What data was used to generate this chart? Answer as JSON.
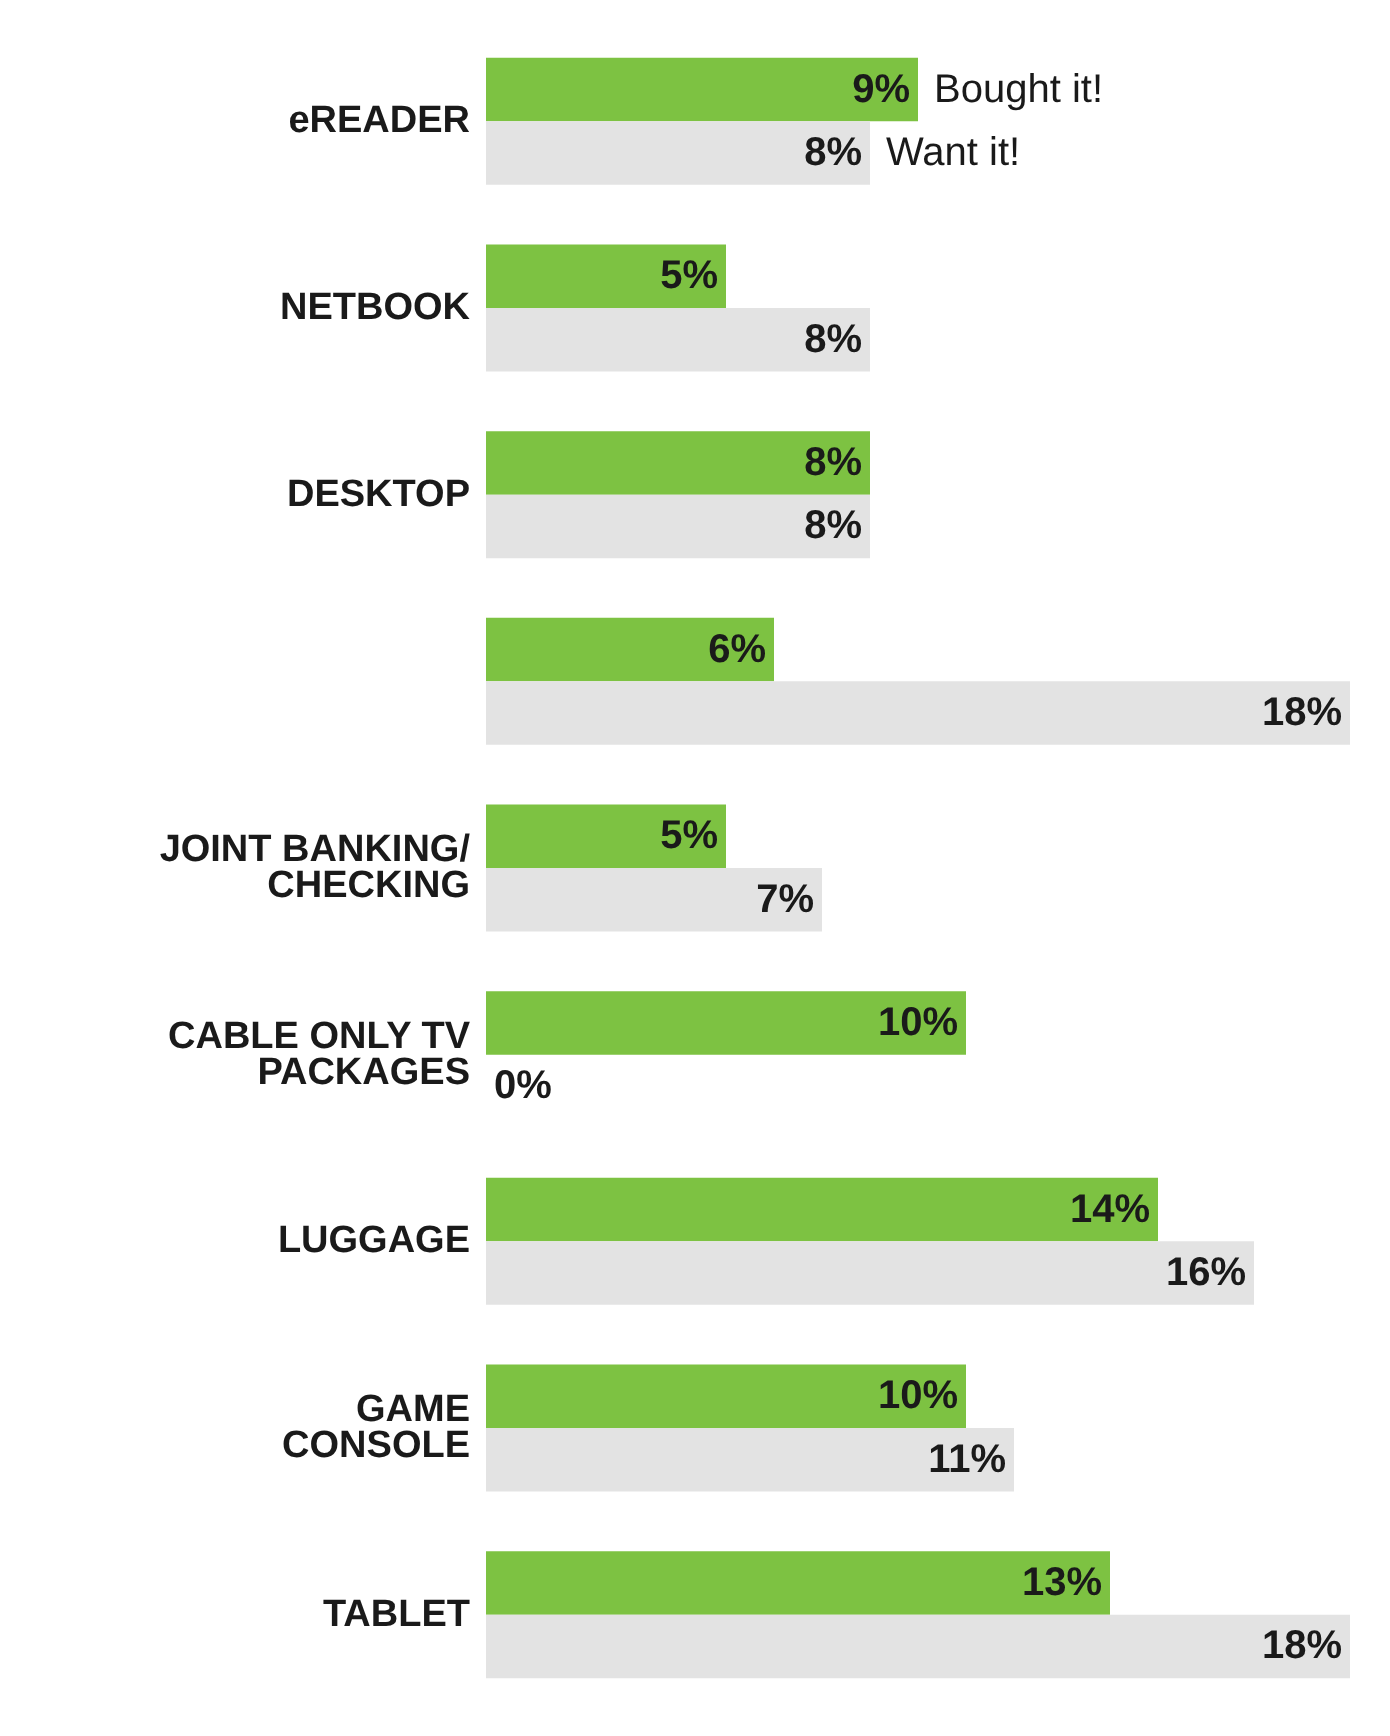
{
  "chart_data": {
    "type": "bar",
    "orientation": "horizontal",
    "categories": [
      "eREADER",
      "NETBOOK",
      "DESKTOP",
      null,
      "JOINT BANKING/\nCHECKING",
      "CABLE ONLY TV\nPACKAGES",
      "LUGGAGE",
      "GAME\nCONSOLE",
      "TABLET"
    ],
    "series": [
      {
        "name": "Bought it!",
        "color": "#7dc242",
        "values": [
          9,
          5,
          8,
          6,
          5,
          10,
          14,
          10,
          13
        ],
        "value_labels": [
          "9%",
          "5%",
          "8%",
          "6%",
          "5%",
          "10%",
          "14%",
          "10%",
          "13%"
        ]
      },
      {
        "name": "Want it!",
        "color": "#e3e3e3",
        "values": [
          8,
          8,
          8,
          18,
          7,
          0,
          16,
          11,
          18
        ],
        "value_labels": [
          "8%",
          "8%",
          "8%",
          "18%",
          "7%",
          "0%",
          "16%",
          "11%",
          "18%"
        ]
      }
    ]
  }
}
